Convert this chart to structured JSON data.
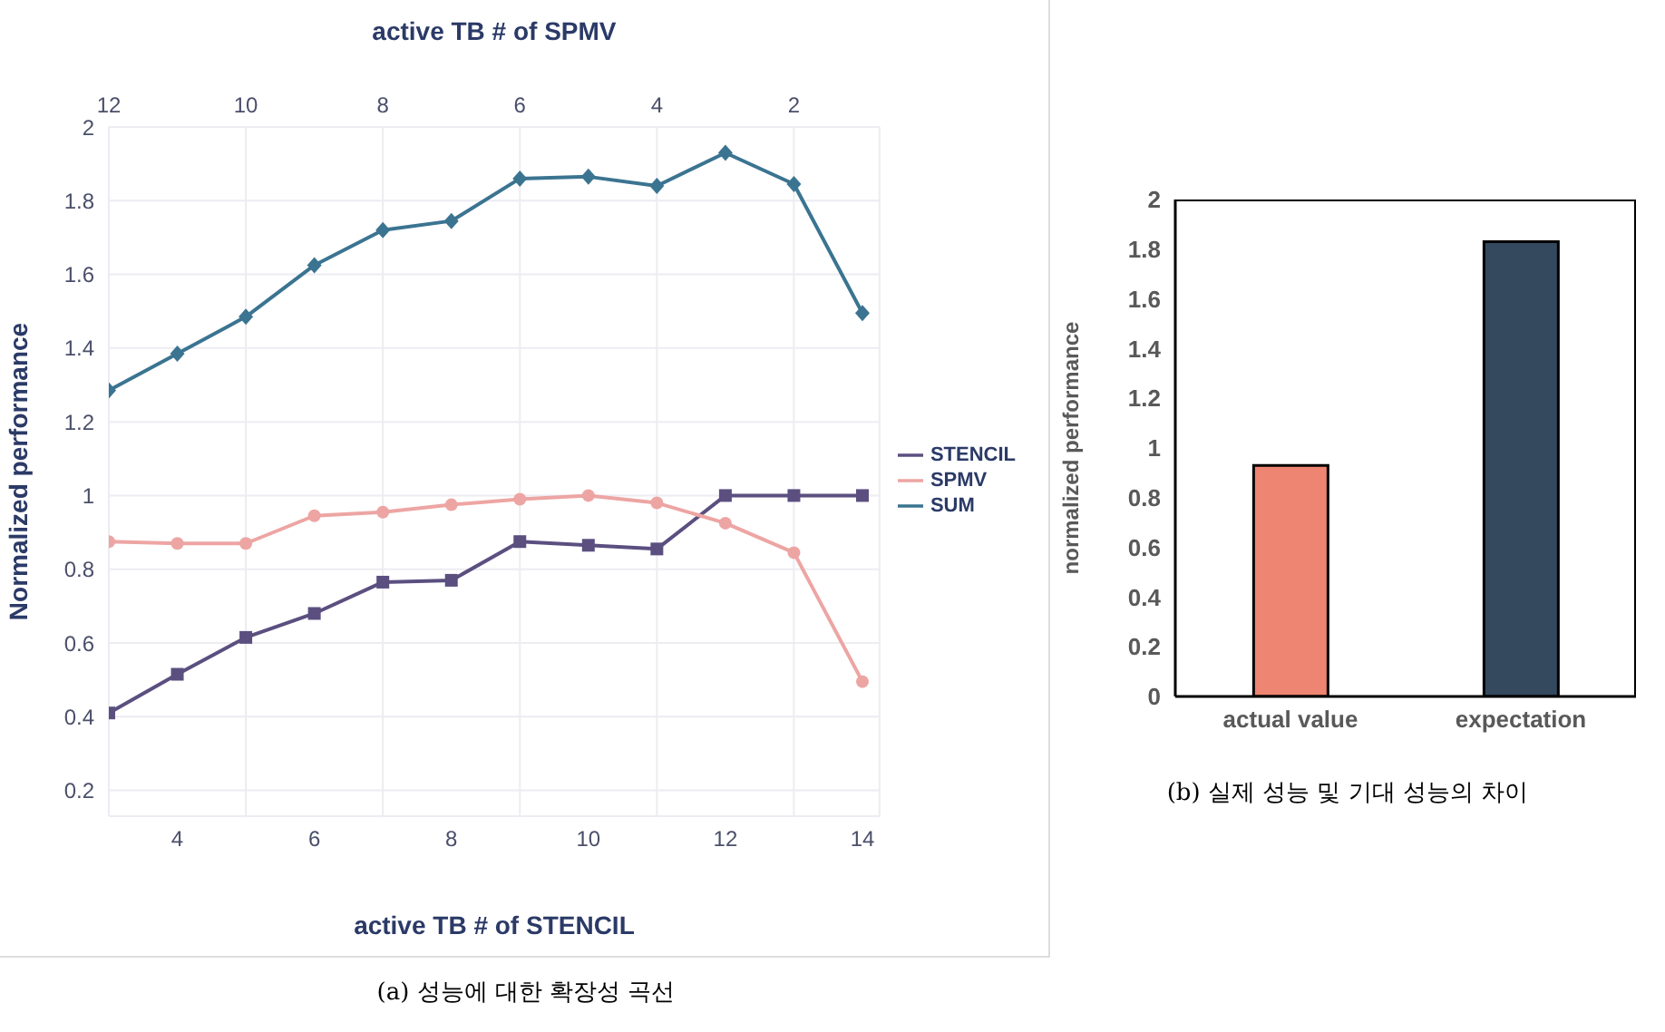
{
  "chart_data": [
    {
      "type": "line",
      "x2label": "active TB # of SPMV",
      "xlabel": "active TB # of STENCIL",
      "ylabel": "Normalized performance",
      "x": [
        3,
        4,
        5,
        6,
        7,
        8,
        9,
        10,
        11,
        12,
        13,
        14
      ],
      "xlim": [
        3,
        14.25
      ],
      "xticks": [
        4,
        6,
        8,
        10,
        12,
        14
      ],
      "x2lim": [
        12,
        0.75
      ],
      "x2ticks": [
        12,
        10,
        8,
        6,
        4,
        2
      ],
      "ylim": [
        0.13,
        2
      ],
      "yticks": [
        0.2,
        0.4,
        0.6,
        0.8,
        1,
        1.2,
        1.4,
        1.6,
        1.8,
        2
      ],
      "grid": true,
      "legend": "right",
      "series": [
        {
          "name": "STENCIL",
          "color": "#5b4f80",
          "marker": "square",
          "values": [
            0.41,
            0.515,
            0.615,
            0.68,
            0.765,
            0.77,
            0.875,
            0.865,
            0.855,
            1.0,
            1.0,
            1.0
          ]
        },
        {
          "name": "SPMV",
          "color": "#eda5a3",
          "marker": "circle",
          "values": [
            0.875,
            0.87,
            0.87,
            0.945,
            0.955,
            0.975,
            0.99,
            1.0,
            0.98,
            0.925,
            0.845,
            0.495
          ]
        },
        {
          "name": "SUM",
          "color": "#3b7491",
          "marker": "diamond",
          "values": [
            1.285,
            1.385,
            1.485,
            1.625,
            1.72,
            1.745,
            1.86,
            1.865,
            1.84,
            1.93,
            1.845,
            1.495
          ]
        }
      ],
      "annotations": [
        "(a) 성능에 대한 확장성 곡선"
      ]
    },
    {
      "type": "bar",
      "ylabel": "normalized performance",
      "categories": [
        "actual value",
        "expectation"
      ],
      "values": [
        0.93,
        1.83
      ],
      "colors": [
        "#ee8472",
        "#34495e"
      ],
      "ylim": [
        0,
        2
      ],
      "yticks": [
        0,
        0.2,
        0.4,
        0.6,
        0.8,
        1,
        1.2,
        1.4,
        1.6,
        1.8,
        2
      ],
      "grid": false,
      "legend": false,
      "annotations": [
        "(b) 실제 성능 및 기대 성능의 차이"
      ]
    }
  ]
}
